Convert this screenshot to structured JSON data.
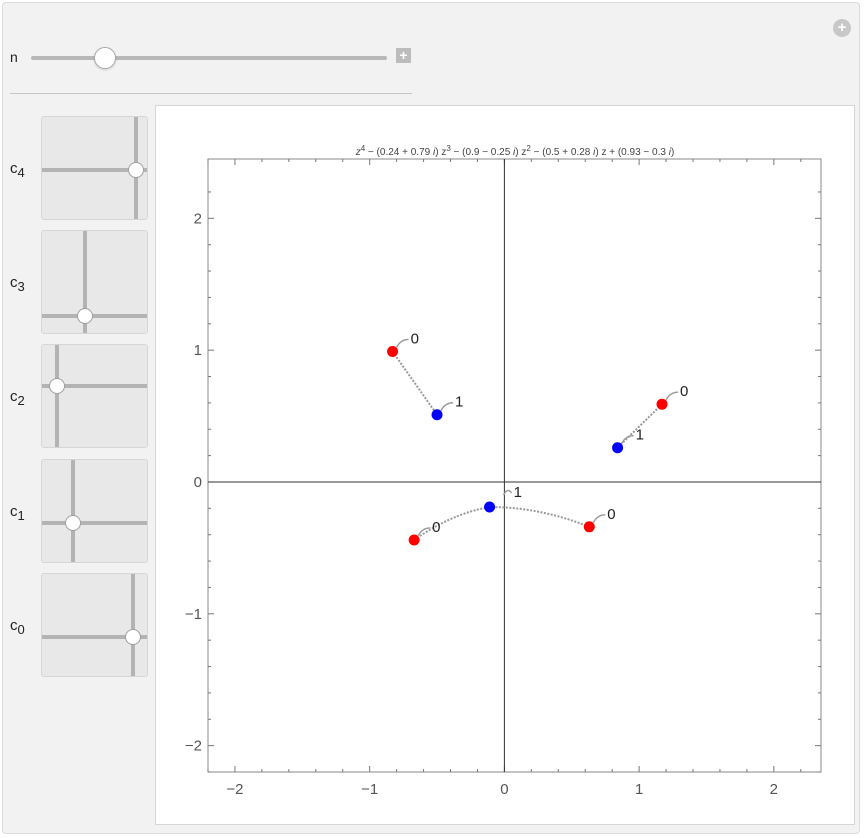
{
  "controls": {
    "n_label": "n",
    "n_value": 0.21,
    "add_icon": "plus-square-icon",
    "panel_add_icon": "plus-circle-icon",
    "coefficients": [
      {
        "base": "c",
        "sub": "4"
      },
      {
        "base": "c",
        "sub": "3"
      },
      {
        "base": "c",
        "sub": "2"
      },
      {
        "base": "c",
        "sub": "1"
      },
      {
        "base": "c",
        "sub": "0"
      }
    ]
  },
  "plot": {
    "title_parts": [
      "z",
      "4",
      " − (0.24 + 0.79 ",
      "i",
      ") z",
      "3",
      " − (0.9 − 0.25 ",
      "i",
      ") z",
      "2",
      " − (0.5 + 0.28 ",
      "i",
      ") z + (0.93 − 0.3 ",
      "i",
      ")"
    ],
    "x_ticks": [
      "−2",
      "−1",
      "0",
      "1",
      "2"
    ],
    "y_ticks": [
      "−2",
      "−1",
      "0",
      "1",
      "2"
    ],
    "colors": {
      "start": "#ff0000",
      "end": "#0000ff",
      "path": "#999999"
    }
  },
  "chart_data": {
    "type": "scatter",
    "title": "z^4 − (0.24 + 0.79 i) z^3 − (0.9 − 0.25 i) z^2 − (0.5 + 0.28 i) z + (0.93 − 0.3 i)",
    "xlim": [
      -2.2,
      2.35
    ],
    "ylim": [
      -2.2,
      2.45
    ],
    "grid": false,
    "series": [
      {
        "values": [
          {
            "x": -0.83,
            "y": 0.99,
            "label": "0"
          },
          {
            "x": -0.5,
            "y": 0.51,
            "label": "1"
          }
        ]
      },
      {
        "values": [
          {
            "x": 1.17,
            "y": 0.59,
            "label": "0"
          },
          {
            "x": 0.84,
            "y": 0.26,
            "label": "1"
          }
        ]
      },
      {
        "values": [
          {
            "x": -0.67,
            "y": -0.44,
            "label": "0"
          },
          {
            "x": -0.11,
            "y": -0.19,
            "label": "1"
          }
        ]
      },
      {
        "values": [
          {
            "x": 0.63,
            "y": -0.34,
            "label": "0"
          },
          {
            "x": -0.11,
            "y": -0.19,
            "label": "1"
          }
        ]
      }
    ]
  }
}
